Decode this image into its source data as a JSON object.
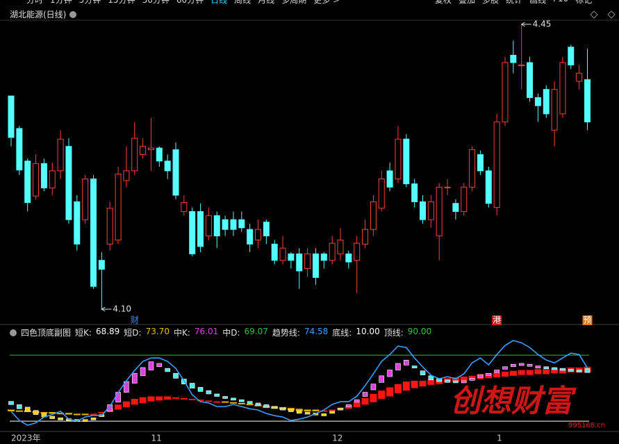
{
  "toolbar": {
    "left": [
      "分时",
      "1分钟",
      "5分钟",
      "15分钟",
      "30分钟",
      "60分钟",
      "日线",
      "周线",
      "月线",
      "多周期",
      "更多 >"
    ],
    "active": 6,
    "right": [
      "复权",
      "叠加",
      "多股",
      "统计",
      "画线",
      "F10",
      "标记"
    ]
  },
  "chart_data": [
    {
      "type": "candlestick",
      "title": "湖北能源(日线)",
      "categories": [
        "2023年",
        null,
        null,
        null,
        null,
        null,
        null,
        null,
        null,
        null,
        null,
        null,
        null,
        null,
        null,
        null,
        null,
        "11",
        null,
        null,
        null,
        null,
        null,
        null,
        null,
        null,
        null,
        null,
        null,
        null,
        null,
        null,
        null,
        null,
        null,
        null,
        null,
        null,
        null,
        "12",
        null,
        null,
        null,
        null,
        null,
        null,
        null,
        null,
        null,
        null,
        null,
        null,
        null,
        null,
        null,
        null,
        null,
        null,
        null,
        "1",
        null,
        null,
        null,
        null,
        null,
        null,
        null,
        null,
        null,
        null,
        null
      ],
      "open": [
        4.362,
        4.322,
        4.282,
        4.239,
        4.279,
        4.249,
        4.27,
        4.3,
        4.232,
        4.21,
        4.26,
        4.16,
        4.18,
        4.185,
        4.258,
        4.27,
        4.29,
        4.296,
        4.298,
        4.282,
        4.296,
        4.22,
        4.22,
        4.22,
        4.19,
        4.215,
        4.21,
        4.21,
        4.21,
        4.198,
        4.185,
        4.207,
        4.18,
        4.16,
        4.168,
        4.168,
        4.15,
        4.168,
        4.168,
        4.16,
        4.168,
        4.168,
        4.16,
        4.18,
        4.198,
        4.224,
        4.27,
        4.26,
        4.309,
        4.254,
        4.232,
        4.21,
        4.19,
        4.25,
        4.23,
        4.22,
        4.25,
        4.29,
        4.27,
        4.225,
        4.33,
        4.412,
        4.4,
        4.403,
        4.36,
        4.37,
        4.32,
        4.34,
        4.422,
        4.38,
        4.382
      ],
      "high": [
        4.362,
        4.325,
        4.285,
        4.29,
        4.285,
        4.28,
        4.32,
        4.31,
        4.24,
        4.265,
        4.265,
        4.17,
        4.232,
        4.275,
        4.3,
        4.33,
        4.31,
        4.335,
        4.3,
        4.29,
        4.305,
        4.24,
        4.225,
        4.23,
        4.225,
        4.22,
        4.215,
        4.22,
        4.22,
        4.205,
        4.21,
        4.21,
        4.185,
        4.19,
        4.17,
        4.175,
        4.175,
        4.175,
        4.17,
        4.19,
        4.2,
        4.172,
        4.19,
        4.21,
        4.24,
        4.27,
        4.28,
        4.325,
        4.315,
        4.26,
        4.24,
        4.24,
        4.255,
        4.26,
        4.235,
        4.255,
        4.3,
        4.295,
        4.275,
        4.34,
        4.41,
        4.43,
        4.45,
        4.41,
        4.365,
        4.375,
        4.38,
        4.41,
        4.425,
        4.4,
        4.42
      ],
      "low": [
        4.3,
        4.265,
        4.22,
        4.235,
        4.245,
        4.24,
        4.26,
        4.205,
        4.172,
        4.205,
        4.125,
        4.1,
        4.172,
        4.18,
        4.25,
        4.265,
        4.285,
        4.27,
        4.275,
        4.26,
        4.235,
        4.215,
        4.165,
        4.17,
        4.185,
        4.175,
        4.19,
        4.19,
        4.195,
        4.17,
        4.175,
        4.18,
        4.155,
        4.155,
        4.15,
        4.125,
        4.14,
        4.13,
        4.15,
        4.155,
        4.16,
        4.15,
        4.12,
        4.175,
        4.19,
        4.22,
        4.245,
        4.255,
        4.25,
        4.225,
        4.205,
        4.2,
        4.16,
        4.24,
        4.21,
        4.215,
        4.245,
        4.265,
        4.225,
        4.215,
        4.325,
        4.39,
        4.37,
        4.355,
        4.33,
        4.335,
        4.3,
        4.335,
        4.395,
        4.37,
        4.32
      ],
      "close": [
        4.311,
        4.271,
        4.231,
        4.279,
        4.249,
        4.27,
        4.309,
        4.21,
        4.18,
        4.26,
        4.128,
        4.149,
        4.224,
        4.266,
        4.27,
        4.31,
        4.3,
        4.298,
        4.282,
        4.27,
        4.24,
        4.231,
        4.168,
        4.177,
        4.215,
        4.19,
        4.198,
        4.198,
        4.2,
        4.18,
        4.198,
        4.19,
        4.16,
        4.175,
        4.16,
        4.147,
        4.168,
        4.139,
        4.16,
        4.181,
        4.185,
        4.158,
        4.181,
        4.198,
        4.232,
        4.26,
        4.25,
        4.309,
        4.254,
        4.232,
        4.21,
        4.232,
        4.25,
        4.25,
        4.22,
        4.25,
        4.296,
        4.27,
        4.23,
        4.33,
        4.403,
        4.403,
        4.4,
        4.36,
        4.35,
        4.34,
        4.37,
        4.403,
        4.4,
        4.39,
        4.33
      ],
      "up_color": "#ff3c3c",
      "down_color": "#54ffff",
      "ylim": [
        4.1,
        4.45
      ],
      "high_label": {
        "value": 4.45,
        "label": "4.45"
      },
      "low_label": {
        "value": 4.1,
        "label": "4.10"
      },
      "events": [
        null,
        null,
        null,
        null,
        null,
        null,
        null,
        null,
        null,
        null,
        null,
        null,
        null,
        null,
        null,
        {
          "label": "财",
          "color": "#3c8cff"
        },
        null,
        null,
        null,
        null,
        null,
        null,
        null,
        null,
        null,
        null,
        null,
        null,
        null,
        null,
        null,
        null,
        null,
        null,
        null,
        null,
        null,
        null,
        null,
        null,
        null,
        null,
        null,
        null,
        null,
        null,
        null,
        null,
        null,
        null,
        null,
        null,
        null,
        null,
        null,
        null,
        null,
        null,
        null,
        {
          "label": "港",
          "color": "#ffffff",
          "bg": "#c81e1e"
        },
        null,
        null,
        null,
        null,
        null,
        null,
        null,
        null,
        null,
        null,
        {
          "label": "预",
          "color": "#ffffff",
          "bg": "#d8781e"
        }
      ]
    },
    {
      "type": "indicator",
      "title": "四色顶底副图",
      "ylim": [
        0,
        110
      ],
      "series": [
        {
          "name": "短K:",
          "color": "#ffffff",
          "values": [
            30,
            25,
            22,
            18,
            15,
            13,
            12,
            11,
            10,
            12,
            14,
            18,
            30,
            45,
            58,
            68,
            75,
            82,
            80,
            70,
            62,
            55,
            50,
            46,
            43,
            40,
            38,
            36,
            34,
            32,
            30,
            28,
            26,
            24,
            22,
            20,
            19,
            18,
            19,
            22,
            26,
            30,
            36,
            45,
            55,
            65,
            72,
            80,
            84,
            75,
            66,
            60,
            58,
            57,
            58,
            59,
            62,
            66,
            68,
            72,
            76,
            79,
            80,
            79,
            77,
            75,
            74,
            72,
            71,
            70,
            68.89
          ]
        },
        {
          "name": "短D:",
          "color": "#e8c000",
          "values": [
            34,
            30,
            27,
            23,
            19,
            16,
            14,
            13,
            12,
            12,
            13,
            16,
            22,
            33,
            45,
            56,
            65,
            72,
            76,
            74,
            68,
            61,
            56,
            51,
            47,
            43,
            40,
            38,
            36,
            34,
            32,
            30,
            28,
            26,
            24,
            22,
            21,
            20,
            19,
            21,
            24,
            28,
            33,
            40,
            48,
            57,
            64,
            72,
            78,
            77,
            71,
            65,
            62,
            60,
            59,
            59,
            60,
            63,
            66,
            69,
            73,
            76,
            78,
            78,
            77,
            76,
            75,
            74,
            73,
            72,
            73.7
          ],
          "value_labels": [
            null,
            null,
            null,
            null,
            null,
            null,
            null,
            null,
            null,
            null,
            null,
            null,
            null,
            null,
            null,
            null,
            null,
            null,
            null,
            null,
            null,
            null,
            null,
            null,
            null,
            null,
            null,
            null,
            null,
            null,
            null,
            null,
            null,
            null,
            null,
            null,
            null,
            null,
            null,
            null,
            null,
            null,
            null,
            null,
            null,
            null,
            null,
            null,
            null,
            null,
            null,
            null,
            null,
            null,
            null,
            null,
            null,
            null,
            null,
            null,
            null,
            null,
            null,
            null,
            null,
            null,
            null,
            null,
            null,
            null,
            "73.70"
          ]
        },
        {
          "name": "中K:",
          "color": "#e040e0",
          "values": [
            22,
            22,
            21,
            20,
            20,
            19,
            19,
            18,
            18,
            18,
            19,
            21,
            25,
            30,
            34,
            37,
            39,
            40,
            40,
            40,
            39,
            38,
            37,
            36,
            35,
            34,
            33,
            32,
            31,
            30,
            28,
            26,
            25,
            24,
            23,
            22,
            22,
            22,
            23,
            24,
            26,
            29,
            33,
            38,
            43,
            47,
            51,
            55,
            58,
            59,
            59,
            60,
            61,
            62,
            63,
            64,
            65,
            67,
            68,
            69,
            70,
            71,
            72,
            72,
            73,
            73,
            74,
            74,
            75,
            75,
            76.01
          ]
        },
        {
          "name": "中D:",
          "color": "#30c030",
          "values": [
            24,
            23,
            23,
            22,
            21,
            21,
            20,
            20,
            19,
            19,
            19,
            20,
            21,
            24,
            27,
            30,
            32,
            34,
            35,
            36,
            37,
            37,
            36,
            36,
            35,
            34,
            34,
            33,
            32,
            31,
            30,
            29,
            28,
            27,
            26,
            25,
            24,
            24,
            23,
            23,
            24,
            25,
            27,
            30,
            33,
            37,
            40,
            44,
            47,
            50,
            52,
            54,
            55,
            57,
            58,
            59,
            60,
            61,
            62,
            63,
            64,
            65,
            66,
            66,
            67,
            67,
            68,
            68,
            69,
            69,
            69.07
          ]
        },
        {
          "name": "趋势线:",
          "color": "#3aa0ff",
          "values": [
            21.8,
            10.8,
            5,
            8,
            15,
            18,
            22,
            12.5,
            10,
            15,
            17,
            17,
            28,
            44.5,
            59,
            71.5,
            82.4,
            86.6,
            86.6,
            82.4,
            74,
            59,
            42,
            33.6,
            32,
            27.7,
            27.7,
            30.2,
            27.7,
            25,
            23.5,
            19.3,
            16.7,
            15,
            10.8,
            12.5,
            15,
            19.3,
            23.5,
            30.2,
            33.6,
            33.6,
            40.3,
            53,
            67.3,
            82.4,
            90.8,
            101,
            99.3,
            86.6,
            75.7,
            65.6,
            61.4,
            63.9,
            61.4,
            67.3,
            80.7,
            86.6,
            78.2,
            90.8,
            101.8,
            107.7,
            105,
            99.3,
            90.8,
            84.1,
            80.7,
            86.6,
            92.5,
            90.8,
            74.58
          ]
        }
      ],
      "hlines": [
        {
          "name": "底线:",
          "value": 10,
          "label": "10.00",
          "color": "#ffffff"
        },
        {
          "name": "顶线:",
          "value": 90,
          "label": "90.00",
          "color": "#3cc03c"
        }
      ],
      "bar_colors": {
        "rise": "#e040e0",
        "fall": "#50e8e8",
        "low": "#f0d000",
        "mid_up": "#ff1414",
        "mid_down": "#f0b400"
      }
    }
  ],
  "watermark": {
    "text": "创想财富",
    "site": "995168.cn"
  }
}
